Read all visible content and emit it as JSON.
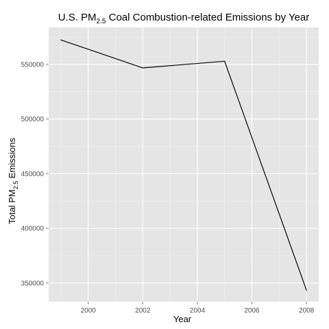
{
  "chart_data": {
    "type": "line",
    "title": {
      "prefix": "U.S. PM",
      "subscript": "2.5",
      "suffix": " Coal Combustion-related Emissions by Year"
    },
    "xlabel": "Year",
    "ylabel": {
      "prefix": "Total PM",
      "subscript": "2.5",
      "suffix": " Emissions"
    },
    "x": [
      1999,
      2002,
      2005,
      2008
    ],
    "series": [
      {
        "values": [
          572346,
          546789,
          552881,
          343432
        ]
      }
    ],
    "xlim": [
      1998.55,
      2008.45
    ],
    "ylim": [
      332986,
      583800
    ],
    "x_ticks": [
      2000,
      2002,
      2004,
      2006,
      2008
    ],
    "x_tick_labels": [
      "2000",
      "2002",
      "2004",
      "2006",
      "2008"
    ],
    "y_ticks": [
      350000,
      400000,
      450000,
      500000,
      550000
    ],
    "y_tick_labels": [
      "350000",
      "400000",
      "450000",
      "500000",
      "550000"
    ],
    "grid": true,
    "line_color": "#000000",
    "panel_color": "#e5e5e5",
    "grid_color": "#ffffff"
  }
}
